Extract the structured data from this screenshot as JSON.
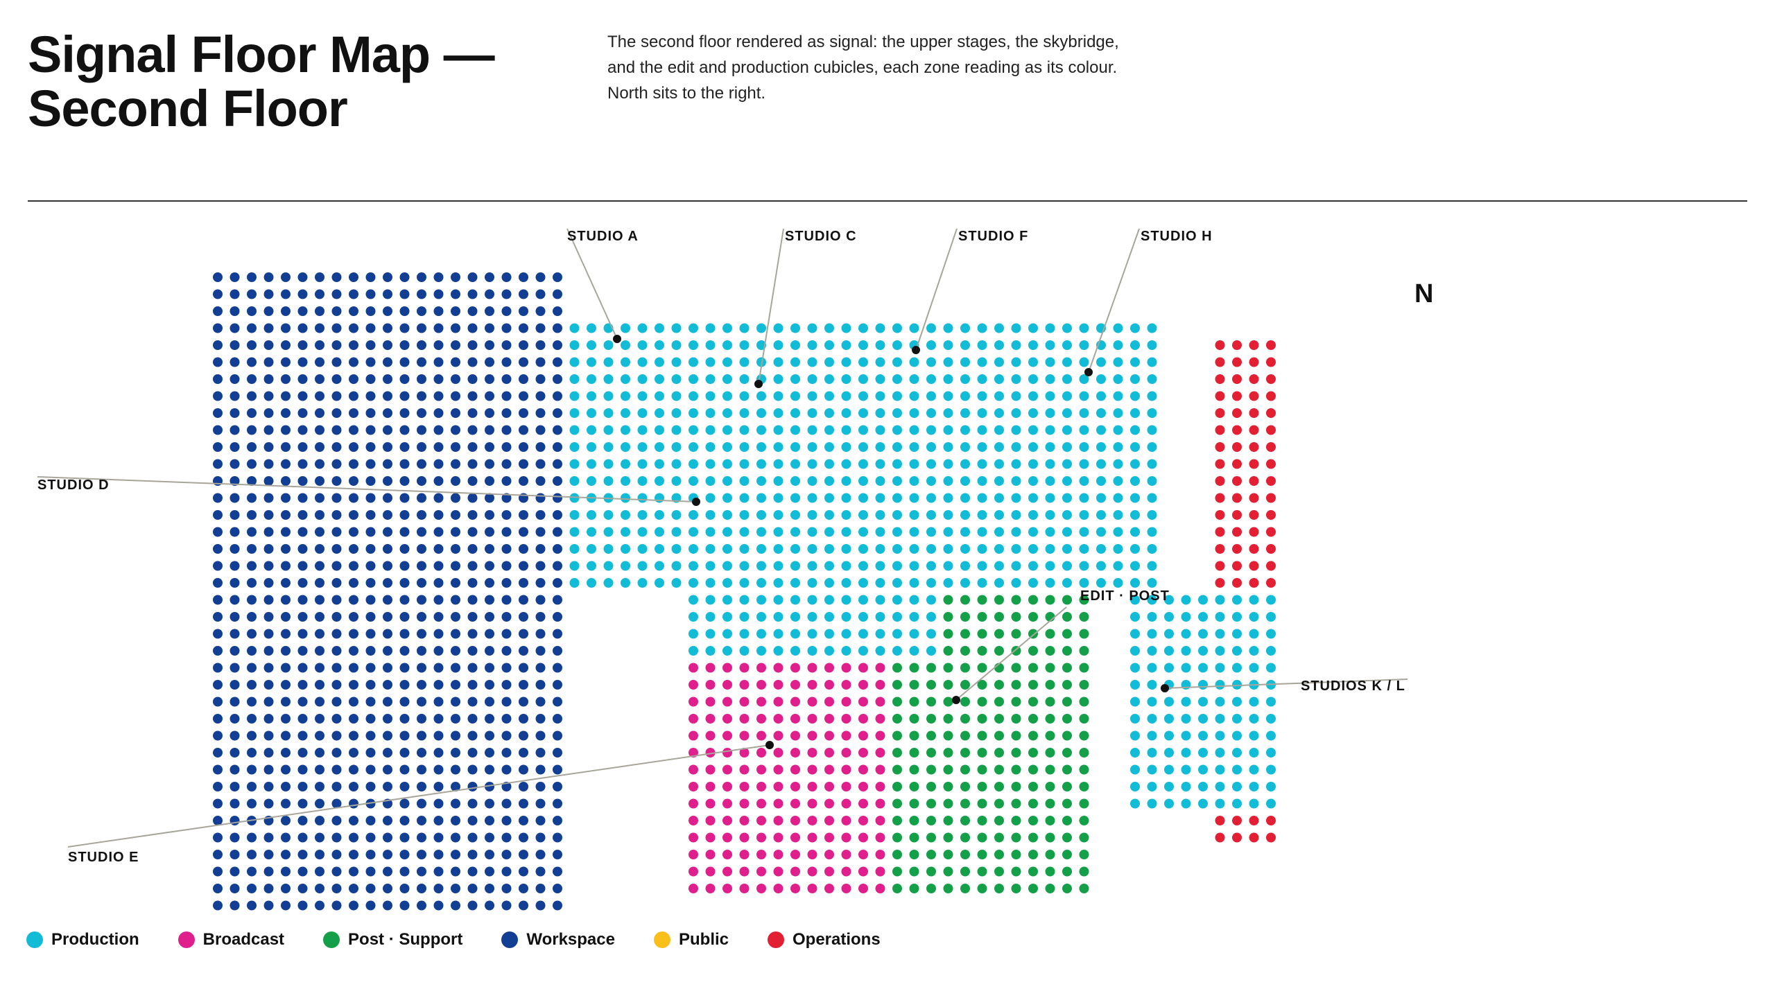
{
  "title_lines": [
    "Signal Floor Map —",
    "Second Floor"
  ],
  "description_lines": [
    "The second floor rendered as signal: the upper stages, the skybridge,",
    "and the edit and production cubicles, each zone reading as its colour.",
    "North sits to the right."
  ],
  "north_label": "N",
  "colors": {
    "production": "#12bcd6",
    "broadcast": "#de1f8c",
    "post_support": "#14a048",
    "workspace": "#123f93",
    "public": "#fbbf1c",
    "operations": "#e21f33",
    "leader": "#a8a59a",
    "marker": "#111111"
  },
  "callouts": [
    {
      "id": "studio-a",
      "label": "STUDIO A"
    },
    {
      "id": "studio-c",
      "label": "STUDIO C"
    },
    {
      "id": "studio-f",
      "label": "STUDIO F"
    },
    {
      "id": "studio-h",
      "label": "STUDIO H"
    },
    {
      "id": "studio-d",
      "label": "STUDIO D"
    },
    {
      "id": "edit-post",
      "label": "EDIT · POST"
    },
    {
      "id": "studios-kl",
      "label": "STUDIOS K / L"
    },
    {
      "id": "studio-e",
      "label": "STUDIO E"
    }
  ],
  "legend": [
    {
      "zone": "production",
      "label": "Production",
      "color": "#12bcd6"
    },
    {
      "zone": "broadcast",
      "label": "Broadcast",
      "color": "#de1f8c"
    },
    {
      "zone": "post_support",
      "label": "Post · Support",
      "color": "#14a048"
    },
    {
      "zone": "workspace",
      "label": "Workspace",
      "color": "#123f93"
    },
    {
      "zone": "public",
      "label": "Public",
      "color": "#fbbf1c"
    },
    {
      "zone": "operations",
      "label": "Operations",
      "color": "#e21f33"
    }
  ]
}
